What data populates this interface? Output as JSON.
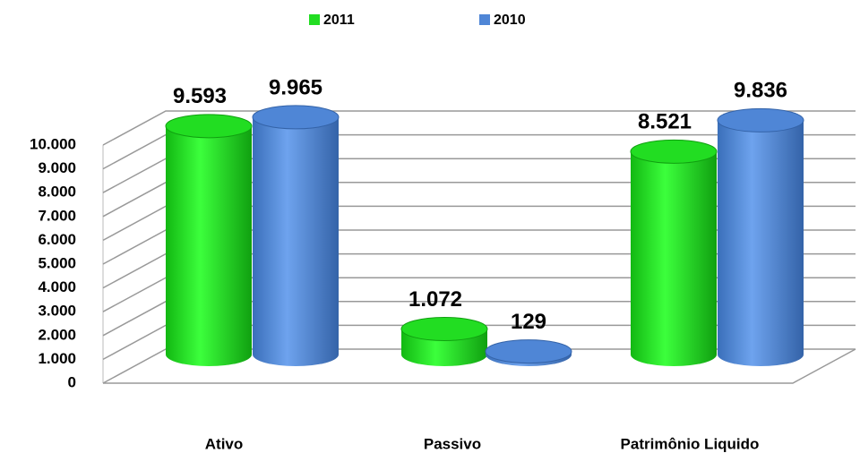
{
  "chart_data": {
    "type": "bar3d",
    "categories": [
      "Ativo",
      "Passivo",
      "Patrimônio Liquido"
    ],
    "series": [
      {
        "name": "2011",
        "color": "#22dd22",
        "values": [
          9593,
          1072,
          8521
        ],
        "value_labels": [
          "9.593",
          "1.072",
          "8.521"
        ]
      },
      {
        "name": "2010",
        "color": "#4f86d6",
        "values": [
          9965,
          129,
          9836
        ],
        "value_labels": [
          "9.965",
          "129",
          "9.836"
        ]
      }
    ],
    "ylim": [
      0,
      10000
    ],
    "yticks": [
      0,
      {
        "value": 1000,
        "label": "1.000"
      },
      {
        "value": 2000,
        "label": "2.000"
      },
      {
        "value": 3000,
        "label": "3.000"
      },
      {
        "value": 4000,
        "label": "4.000"
      },
      {
        "value": 5000,
        "label": "5.000"
      },
      {
        "value": 6000,
        "label": "6.000"
      },
      {
        "value": 7000,
        "label": "7.000"
      },
      {
        "value": 8000,
        "label": "8.000"
      },
      {
        "value": 9000,
        "label": "9.000"
      },
      {
        "value": 10000,
        "label": "10.000"
      }
    ],
    "grid": true,
    "legend": "top"
  }
}
